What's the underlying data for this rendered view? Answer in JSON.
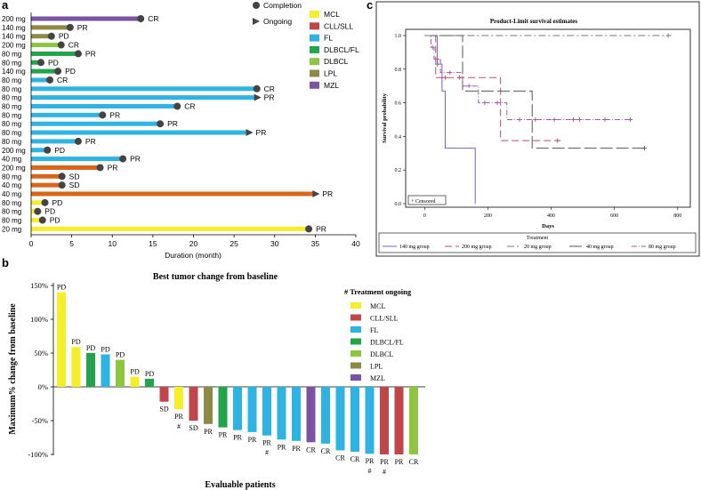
{
  "panel_labels": {
    "a": "a",
    "b": "b",
    "c": "c"
  },
  "colors": {
    "MCL": "#f5ee2a",
    "CLL/SLL": "#c0464a",
    "FL": "#2fb3e3",
    "DLBCL/FL": "#22a44d",
    "DLBCL": "#8ec641",
    "LPL": "#8c8a46",
    "MZL": "#7a53a2",
    "DLBCL_swim": "#d9661b"
  },
  "chart_data": [
    {
      "type": "bar",
      "subtype": "swimmer",
      "title": "",
      "xlabel": "Duration (month)",
      "ylabel": "",
      "xlim": [
        0,
        40
      ],
      "x_ticks": [
        "0",
        "5",
        "10",
        "15",
        "20",
        "25",
        "30",
        "35",
        "40"
      ],
      "legend_markers": [
        {
          "symbol": "circle",
          "label": "Completion"
        },
        {
          "symbol": "triangle",
          "label": "Ongoing"
        }
      ],
      "legend_types": [
        "MCL",
        "CLL/SLL",
        "FL",
        "DLBCL/FL",
        "DLBCL",
        "LPL",
        "MZL"
      ],
      "rows": [
        {
          "dose": "200 mg",
          "duration": 13.5,
          "color": "MZL",
          "end": "circle",
          "response": "CR"
        },
        {
          "dose": "140 mg",
          "duration": 4.8,
          "color": "LPL",
          "end": "circle",
          "response": "PR"
        },
        {
          "dose": "140 mg",
          "duration": 2.5,
          "color": "LPL",
          "end": "circle",
          "response": "PD"
        },
        {
          "dose": "200 mg",
          "duration": 3.7,
          "color": "DLBCL",
          "end": "circle",
          "response": "CR"
        },
        {
          "dose": "80 mg",
          "duration": 5.8,
          "color": "DLBCL/FL",
          "end": "circle",
          "response": "PR"
        },
        {
          "dose": "80 mg",
          "duration": 1.2,
          "color": "DLBCL/FL",
          "end": "circle",
          "response": "PD"
        },
        {
          "dose": "140 mg",
          "duration": 3.3,
          "color": "DLBCL/FL",
          "end": "circle",
          "response": "PD"
        },
        {
          "dose": "80 mg",
          "duration": 2.3,
          "color": "FL",
          "end": "circle",
          "response": "CR"
        },
        {
          "dose": "80 mg",
          "duration": 27.8,
          "color": "FL",
          "end": "circle",
          "response": "CR"
        },
        {
          "dose": "80 mg",
          "duration": 27.8,
          "color": "FL",
          "end": "triangle",
          "response": "PR"
        },
        {
          "dose": "80 mg",
          "duration": 18.0,
          "color": "FL",
          "end": "circle",
          "response": "CR"
        },
        {
          "dose": "80 mg",
          "duration": 8.8,
          "color": "FL",
          "end": "circle",
          "response": "PR"
        },
        {
          "dose": "80 mg",
          "duration": 15.9,
          "color": "FL",
          "end": "circle",
          "response": "PR"
        },
        {
          "dose": "80 mg",
          "duration": 26.8,
          "color": "FL",
          "end": "triangle",
          "response": "PR"
        },
        {
          "dose": "80 mg",
          "duration": 5.8,
          "color": "FL",
          "end": "circle",
          "response": "PR"
        },
        {
          "dose": "200 mg",
          "duration": 2.0,
          "color": "FL",
          "end": "circle",
          "response": "PD"
        },
        {
          "dose": "40 mg",
          "duration": 11.3,
          "color": "FL",
          "end": "circle",
          "response": "PR"
        },
        {
          "dose": "200 mg",
          "duration": 8.5,
          "color": "DLBCL_swim",
          "end": "circle",
          "response": "PR"
        },
        {
          "dose": "80 mg",
          "duration": 3.8,
          "color": "DLBCL_swim",
          "end": "circle",
          "response": "SD"
        },
        {
          "dose": "40 mg",
          "duration": 3.8,
          "color": "DLBCL_swim",
          "end": "circle",
          "response": "SD"
        },
        {
          "dose": "40 mg",
          "duration": 35.0,
          "color": "DLBCL_swim",
          "end": "triangle",
          "response": "PR"
        },
        {
          "dose": "80 mg",
          "duration": 1.7,
          "color": "MCL",
          "end": "circle",
          "response": "PD"
        },
        {
          "dose": "80 mg",
          "duration": 0.8,
          "color": "MCL",
          "end": "circle",
          "response": "PD"
        },
        {
          "dose": "80 mg",
          "duration": 1.4,
          "color": "MCL",
          "end": "circle",
          "response": "PD"
        },
        {
          "dose": "20 mg",
          "duration": 34.2,
          "color": "MCL",
          "end": "circle",
          "response": "PR"
        }
      ]
    },
    {
      "type": "bar",
      "subtype": "waterfall",
      "title": "Best tumor change from baseline",
      "xlabel": "Evaluable patients",
      "ylabel": "Maximum% change from baseline",
      "ylim": [
        -100,
        150
      ],
      "y_ticks": [
        "150%",
        "100%",
        "50%",
        "0%",
        "-50%",
        "-100%"
      ],
      "legend_title": "# Treatment ongoing",
      "legend_types": [
        "MCL",
        "CLL/SLL",
        "FL",
        "DLBCL/FL",
        "DLBCL",
        "LPL",
        "MZL"
      ],
      "bars": [
        {
          "value": 140,
          "color": "MCL",
          "label": "PD",
          "ongoing": ""
        },
        {
          "value": 59,
          "color": "MCL",
          "label": "PD",
          "ongoing": ""
        },
        {
          "value": 50,
          "color": "DLBCL/FL",
          "label": "PD",
          "ongoing": ""
        },
        {
          "value": 48,
          "color": "FL",
          "label": "PD",
          "ongoing": ""
        },
        {
          "value": 40,
          "color": "DLBCL",
          "label": "PD",
          "ongoing": ""
        },
        {
          "value": 15,
          "color": "MCL",
          "label": "PD",
          "ongoing": ""
        },
        {
          "value": 12,
          "color": "DLBCL/FL",
          "label": "PD",
          "ongoing": ""
        },
        {
          "value": -22,
          "color": "CLL/SLL",
          "label": "SD",
          "ongoing": ""
        },
        {
          "value": -33,
          "color": "MCL",
          "label": "PR",
          "ongoing": "#"
        },
        {
          "value": -50,
          "color": "CLL/SLL",
          "label": "SD",
          "ongoing": ""
        },
        {
          "value": -55,
          "color": "LPL",
          "label": "PR",
          "ongoing": ""
        },
        {
          "value": -60,
          "color": "DLBCL/FL",
          "label": "PR",
          "ongoing": ""
        },
        {
          "value": -64,
          "color": "FL",
          "label": "PR",
          "ongoing": ""
        },
        {
          "value": -67,
          "color": "FL",
          "label": "PR",
          "ongoing": ""
        },
        {
          "value": -72,
          "color": "FL",
          "label": "PR",
          "ongoing": "#"
        },
        {
          "value": -78,
          "color": "FL",
          "label": "PR",
          "ongoing": ""
        },
        {
          "value": -80,
          "color": "FL",
          "label": "PR",
          "ongoing": ""
        },
        {
          "value": -82,
          "color": "MZL",
          "label": "CR",
          "ongoing": ""
        },
        {
          "value": -84,
          "color": "FL",
          "label": "CR",
          "ongoing": ""
        },
        {
          "value": -94,
          "color": "FL",
          "label": "CR",
          "ongoing": ""
        },
        {
          "value": -96,
          "color": "FL",
          "label": "CR",
          "ongoing": ""
        },
        {
          "value": -99,
          "color": "FL",
          "label": "PR",
          "ongoing": "#"
        },
        {
          "value": -100,
          "color": "CLL/SLL",
          "label": "PR",
          "ongoing": "#"
        },
        {
          "value": -100,
          "color": "CLL/SLL",
          "label": "PR",
          "ongoing": ""
        },
        {
          "value": -100,
          "color": "DLBCL",
          "label": "CR",
          "ongoing": ""
        }
      ]
    },
    {
      "type": "line",
      "subtype": "kaplan-meier",
      "title": "Product-Limit survival estimates",
      "xlabel": "Days",
      "ylabel": "Survival probability",
      "xlim": [
        -60,
        840
      ],
      "ylim": [
        0,
        1.0
      ],
      "x_ticks": [
        0,
        200,
        400,
        600,
        800
      ],
      "y_ticks": [
        "0.0",
        "0.2",
        "0.4",
        "0.6",
        "0.8",
        "1.0"
      ],
      "censored_label": "+ Censored",
      "legend_title": "Treatment",
      "series": [
        {
          "name": "140 mg group",
          "color": "#7a5fb0",
          "dash": "",
          "steps": [
            [
              0,
              1.0
            ],
            [
              40,
              0.83
            ],
            [
              55,
              0.67
            ],
            [
              65,
              0.33
            ],
            [
              160,
              0.0
            ]
          ],
          "censored": [
            [
              40,
              0.83
            ]
          ]
        },
        {
          "name": "200 mg group",
          "color": "#b0506e",
          "dash": "8,4",
          "steps": [
            [
              0,
              1.0
            ],
            [
              35,
              0.75
            ],
            [
              240,
              0.375
            ],
            [
              430,
              0.375
            ]
          ],
          "censored": [
            [
              65,
              0.75
            ],
            [
              110,
              0.75
            ],
            [
              420,
              0.375
            ]
          ]
        },
        {
          "name": "20 mg group",
          "color": "#777777",
          "dash": "8,3,2,3",
          "steps": [
            [
              0,
              1.0
            ],
            [
              780,
              1.0
            ]
          ],
          "censored": [
            [
              770,
              1.0
            ]
          ]
        },
        {
          "name": "40 mg group",
          "color": "#555555",
          "dash": "14,4",
          "steps": [
            [
              0,
              1.0
            ],
            [
              120,
              0.67
            ],
            [
              340,
              0.33
            ],
            [
              700,
              0.33
            ]
          ],
          "censored": [
            [
              695,
              0.33
            ]
          ]
        },
        {
          "name": "80 mg group",
          "color": "#a05aa8",
          "dash": "6,2,1,2",
          "steps": [
            [
              0,
              1.0
            ],
            [
              20,
              0.93
            ],
            [
              30,
              0.86
            ],
            [
              50,
              0.78
            ],
            [
              120,
              0.7
            ],
            [
              170,
              0.6
            ],
            [
              260,
              0.5
            ],
            [
              660,
              0.5
            ]
          ],
          "censored": [
            [
              25,
              0.93
            ],
            [
              40,
              0.86
            ],
            [
              80,
              0.78
            ],
            [
              140,
              0.7
            ],
            [
              190,
              0.6
            ],
            [
              230,
              0.6
            ],
            [
              300,
              0.5
            ],
            [
              350,
              0.5
            ],
            [
              410,
              0.5
            ],
            [
              470,
              0.5
            ],
            [
              490,
              0.5
            ],
            [
              570,
              0.5
            ],
            [
              650,
              0.5
            ]
          ]
        }
      ]
    }
  ]
}
